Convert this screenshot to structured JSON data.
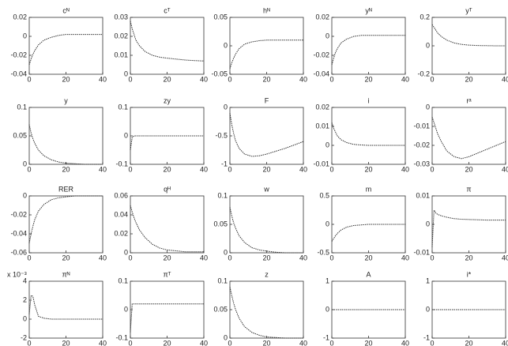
{
  "chart_data": [
    {
      "type": "line",
      "title": "cᴺ",
      "x": [
        0,
        1,
        2,
        3,
        5,
        8,
        12,
        16,
        20,
        25,
        30,
        35,
        40
      ],
      "values": [
        -0.03,
        -0.024,
        -0.019,
        -0.015,
        -0.009,
        -0.004,
        -0.001,
        0.001,
        0.002,
        0.002,
        0.002,
        0.002,
        0.002
      ],
      "xlim": [
        0,
        40
      ],
      "xticks": [
        0,
        20,
        40
      ],
      "ylim": [
        -0.04,
        0.02
      ],
      "yticks": [
        -0.04,
        -0.02,
        0,
        0.02
      ],
      "color": "#333333"
    },
    {
      "type": "line",
      "title": "cᵀ",
      "x": [
        0,
        1,
        2,
        3,
        5,
        8,
        12,
        16,
        20,
        25,
        30,
        35,
        40
      ],
      "values": [
        0.028,
        0.024,
        0.021,
        0.018,
        0.015,
        0.012,
        0.01,
        0.009,
        0.0085,
        0.008,
        0.0075,
        0.0072,
        0.007
      ],
      "xlim": [
        0,
        40
      ],
      "xticks": [
        0,
        20,
        40
      ],
      "ylim": [
        0,
        0.03
      ],
      "yticks": [
        0,
        0.01,
        0.02,
        0.03
      ],
      "color": "#333333"
    },
    {
      "type": "line",
      "title": "hᴺ",
      "x": [
        0,
        1,
        2,
        3,
        5,
        8,
        12,
        16,
        20,
        25,
        30,
        35,
        40
      ],
      "values": [
        -0.04,
        -0.03,
        -0.022,
        -0.015,
        -0.005,
        0.003,
        0.007,
        0.009,
        0.01,
        0.01,
        0.01,
        0.01,
        0.01
      ],
      "xlim": [
        0,
        40
      ],
      "xticks": [
        0,
        20,
        40
      ],
      "ylim": [
        -0.05,
        0.05
      ],
      "yticks": [
        -0.05,
        0,
        0.05
      ],
      "color": "#333333"
    },
    {
      "type": "line",
      "title": "yᴺ",
      "x": [
        0,
        1,
        2,
        3,
        5,
        8,
        12,
        16,
        20,
        25,
        30,
        35,
        40
      ],
      "values": [
        -0.03,
        -0.023,
        -0.017,
        -0.013,
        -0.007,
        -0.003,
        0,
        0.001,
        0.001,
        0.001,
        0.001,
        0.001,
        0.001
      ],
      "xlim": [
        0,
        40
      ],
      "xticks": [
        0,
        20,
        40
      ],
      "ylim": [
        -0.04,
        0.02
      ],
      "yticks": [
        -0.04,
        -0.02,
        0,
        0.02
      ],
      "color": "#333333"
    },
    {
      "type": "line",
      "title": "yᵀ",
      "x": [
        0,
        1,
        2,
        3,
        5,
        8,
        12,
        16,
        20,
        25,
        30,
        35,
        40
      ],
      "values": [
        0.15,
        0.13,
        0.11,
        0.09,
        0.065,
        0.04,
        0.02,
        0.01,
        0.005,
        0.002,
        0.001,
        0,
        0
      ],
      "xlim": [
        0,
        40
      ],
      "xticks": [
        0,
        20,
        40
      ],
      "ylim": [
        -0.2,
        0.2
      ],
      "yticks": [
        -0.2,
        0,
        0.2
      ],
      "color": "#333333"
    },
    {
      "type": "line",
      "title": "y",
      "x": [
        0,
        1,
        2,
        3,
        5,
        8,
        12,
        16,
        20,
        25,
        30,
        35,
        40
      ],
      "values": [
        0.07,
        0.055,
        0.045,
        0.037,
        0.025,
        0.015,
        0.008,
        0.004,
        0.002,
        0.001,
        0,
        0,
        0
      ],
      "xlim": [
        0,
        40
      ],
      "xticks": [
        0,
        20,
        40
      ],
      "ylim": [
        0,
        0.1
      ],
      "yticks": [
        0,
        0.05,
        0.1
      ],
      "color": "#333333"
    },
    {
      "type": "line",
      "title": "zy",
      "x": [
        0,
        1,
        2,
        3,
        5,
        8,
        12,
        16,
        20,
        25,
        30,
        35,
        40
      ],
      "values": [
        -0.05,
        -0.005,
        0,
        0,
        0,
        0,
        0,
        0,
        0,
        0,
        0,
        0,
        0
      ],
      "xlim": [
        0,
        40
      ],
      "xticks": [
        0,
        20,
        40
      ],
      "ylim": [
        -0.1,
        0.1
      ],
      "yticks": [
        -0.1,
        0,
        0.1
      ],
      "color": "#333333"
    },
    {
      "type": "line",
      "title": "F",
      "x": [
        0,
        1,
        2,
        3,
        5,
        8,
        12,
        16,
        20,
        25,
        30,
        35,
        40
      ],
      "values": [
        -0.1,
        -0.3,
        -0.45,
        -0.58,
        -0.72,
        -0.82,
        -0.86,
        -0.85,
        -0.82,
        -0.77,
        -0.72,
        -0.66,
        -0.6
      ],
      "xlim": [
        0,
        40
      ],
      "xticks": [
        0,
        20,
        40
      ],
      "ylim": [
        -1,
        0
      ],
      "yticks": [
        -1,
        -0.5,
        0
      ],
      "color": "#333333"
    },
    {
      "type": "line",
      "title": "i",
      "x": [
        0,
        1,
        2,
        3,
        5,
        8,
        12,
        16,
        20,
        25,
        30,
        35,
        40
      ],
      "values": [
        0.012,
        0.009,
        0.007,
        0.005,
        0.003,
        0.0015,
        0.0005,
        0.0002,
        0,
        0,
        0,
        0,
        0
      ],
      "xlim": [
        0,
        40
      ],
      "xticks": [
        0,
        20,
        40
      ],
      "ylim": [
        -0.01,
        0.02
      ],
      "yticks": [
        -0.01,
        0,
        0.01,
        0.02
      ],
      "color": "#333333"
    },
    {
      "type": "line",
      "title": "rᵃ",
      "x": [
        0,
        1,
        2,
        3,
        5,
        8,
        12,
        16,
        20,
        25,
        30,
        35,
        40
      ],
      "values": [
        -0.005,
        -0.008,
        -0.011,
        -0.014,
        -0.018,
        -0.023,
        -0.026,
        -0.027,
        -0.026,
        -0.024,
        -0.022,
        -0.02,
        -0.018
      ],
      "xlim": [
        0,
        40
      ],
      "xticks": [
        0,
        20,
        40
      ],
      "ylim": [
        -0.03,
        0
      ],
      "yticks": [
        -0.03,
        -0.02,
        -0.01,
        0
      ],
      "color": "#333333"
    },
    {
      "type": "line",
      "title": "RER",
      "x": [
        0,
        1,
        2,
        3,
        5,
        8,
        12,
        16,
        20,
        25,
        30,
        35,
        40
      ],
      "values": [
        -0.05,
        -0.04,
        -0.032,
        -0.025,
        -0.016,
        -0.009,
        -0.004,
        -0.002,
        -0.001,
        0,
        0,
        0,
        0
      ],
      "xlim": [
        0,
        40
      ],
      "xticks": [
        0,
        20,
        40
      ],
      "ylim": [
        -0.06,
        0
      ],
      "yticks": [
        -0.06,
        -0.04,
        -0.02,
        0
      ],
      "color": "#333333"
    },
    {
      "type": "line",
      "title": "qᴴ",
      "x": [
        0,
        1,
        2,
        3,
        5,
        8,
        12,
        16,
        20,
        25,
        30,
        35,
        40
      ],
      "values": [
        0.05,
        0.043,
        0.037,
        0.032,
        0.024,
        0.016,
        0.009,
        0.005,
        0.003,
        0.002,
        0.001,
        0.001,
        0.001
      ],
      "xlim": [
        0,
        40
      ],
      "xticks": [
        0,
        20,
        40
      ],
      "ylim": [
        0,
        0.06
      ],
      "yticks": [
        0,
        0.02,
        0.04,
        0.06
      ],
      "color": "#333333"
    },
    {
      "type": "line",
      "title": "w",
      "x": [
        0,
        1,
        2,
        3,
        5,
        8,
        12,
        16,
        20,
        25,
        30,
        35,
        40
      ],
      "values": [
        0.08,
        0.065,
        0.053,
        0.044,
        0.03,
        0.018,
        0.009,
        0.005,
        0.003,
        0.001,
        0,
        0,
        0
      ],
      "xlim": [
        0,
        40
      ],
      "xticks": [
        0,
        20,
        40
      ],
      "ylim": [
        0,
        0.1
      ],
      "yticks": [
        0,
        0.05,
        0.1
      ],
      "color": "#333333"
    },
    {
      "type": "line",
      "title": "m",
      "x": [
        0,
        1,
        2,
        3,
        5,
        8,
        12,
        16,
        20,
        25,
        30,
        35,
        40
      ],
      "values": [
        -0.3,
        -0.25,
        -0.2,
        -0.16,
        -0.1,
        -0.05,
        -0.02,
        -0.01,
        0,
        0,
        0,
        0,
        0
      ],
      "xlim": [
        0,
        40
      ],
      "xticks": [
        0,
        20,
        40
      ],
      "ylim": [
        -0.5,
        0.5
      ],
      "yticks": [
        -0.5,
        0,
        0.5
      ],
      "color": "#333333"
    },
    {
      "type": "line",
      "title": "π",
      "x": [
        0,
        1,
        2,
        3,
        5,
        8,
        12,
        16,
        20,
        25,
        30,
        35,
        40
      ],
      "values": [
        -0.008,
        0.005,
        0.004,
        0.0035,
        0.003,
        0.0025,
        0.002,
        0.0018,
        0.0017,
        0.0016,
        0.0015,
        0.0015,
        0.0015
      ],
      "xlim": [
        0,
        40
      ],
      "xticks": [
        0,
        20,
        40
      ],
      "ylim": [
        -0.01,
        0.01
      ],
      "yticks": [
        -0.01,
        0,
        0.01
      ],
      "color": "#333333"
    },
    {
      "type": "line",
      "title": "πᴺ",
      "multiplier": "x 10⁻³",
      "x": [
        0,
        1,
        2,
        3,
        5,
        8,
        12,
        16,
        20,
        25,
        30,
        35,
        40
      ],
      "values": [
        0.5,
        2.5,
        2.4,
        1.5,
        0.3,
        0.1,
        0,
        0,
        0,
        0,
        0,
        0,
        0
      ],
      "xlim": [
        0,
        40
      ],
      "xticks": [
        0,
        20,
        40
      ],
      "ylim": [
        -2,
        4
      ],
      "yticks": [
        -2,
        0,
        2,
        4
      ],
      "color": "#333333"
    },
    {
      "type": "line",
      "title": "πᵀ",
      "x": [
        0,
        1,
        2,
        3,
        5,
        8,
        12,
        16,
        20,
        25,
        30,
        35,
        40
      ],
      "values": [
        -0.08,
        0.02,
        0.02,
        0.02,
        0.02,
        0.02,
        0.02,
        0.02,
        0.02,
        0.02,
        0.02,
        0.02,
        0.02
      ],
      "xlim": [
        0,
        40
      ],
      "xticks": [
        0,
        20,
        40
      ],
      "ylim": [
        -0.1,
        0.1
      ],
      "yticks": [
        -0.1,
        0,
        0.1
      ],
      "color": "#333333"
    },
    {
      "type": "line",
      "title": "z",
      "x": [
        0,
        1,
        2,
        3,
        5,
        8,
        12,
        16,
        20,
        25,
        30,
        35,
        40
      ],
      "values": [
        0.09,
        0.075,
        0.062,
        0.051,
        0.035,
        0.02,
        0.01,
        0.005,
        0.002,
        0.001,
        0,
        0,
        0
      ],
      "xlim": [
        0,
        40
      ],
      "xticks": [
        0,
        20,
        40
      ],
      "ylim": [
        0,
        0.1
      ],
      "yticks": [
        0,
        0.05,
        0.1
      ],
      "color": "#333333"
    },
    {
      "type": "line",
      "title": "A",
      "x": [
        0,
        1,
        2,
        3,
        5,
        8,
        12,
        16,
        20,
        25,
        30,
        35,
        40
      ],
      "values": [
        0,
        0,
        0,
        0,
        0,
        0,
        0,
        0,
        0,
        0,
        0,
        0,
        0
      ],
      "xlim": [
        0,
        40
      ],
      "xticks": [
        0,
        20,
        40
      ],
      "ylim": [
        -1,
        1
      ],
      "yticks": [
        -1,
        0,
        1
      ],
      "color": "#333333"
    },
    {
      "type": "line",
      "title": "i*",
      "x": [
        0,
        1,
        2,
        3,
        5,
        8,
        12,
        16,
        20,
        25,
        30,
        35,
        40
      ],
      "values": [
        0,
        0,
        0,
        0,
        0,
        0,
        0,
        0,
        0,
        0,
        0,
        0,
        0
      ],
      "xlim": [
        0,
        40
      ],
      "xticks": [
        0,
        20,
        40
      ],
      "ylim": [
        -1,
        1
      ],
      "yticks": [
        -1,
        0,
        1
      ],
      "color": "#333333"
    }
  ]
}
